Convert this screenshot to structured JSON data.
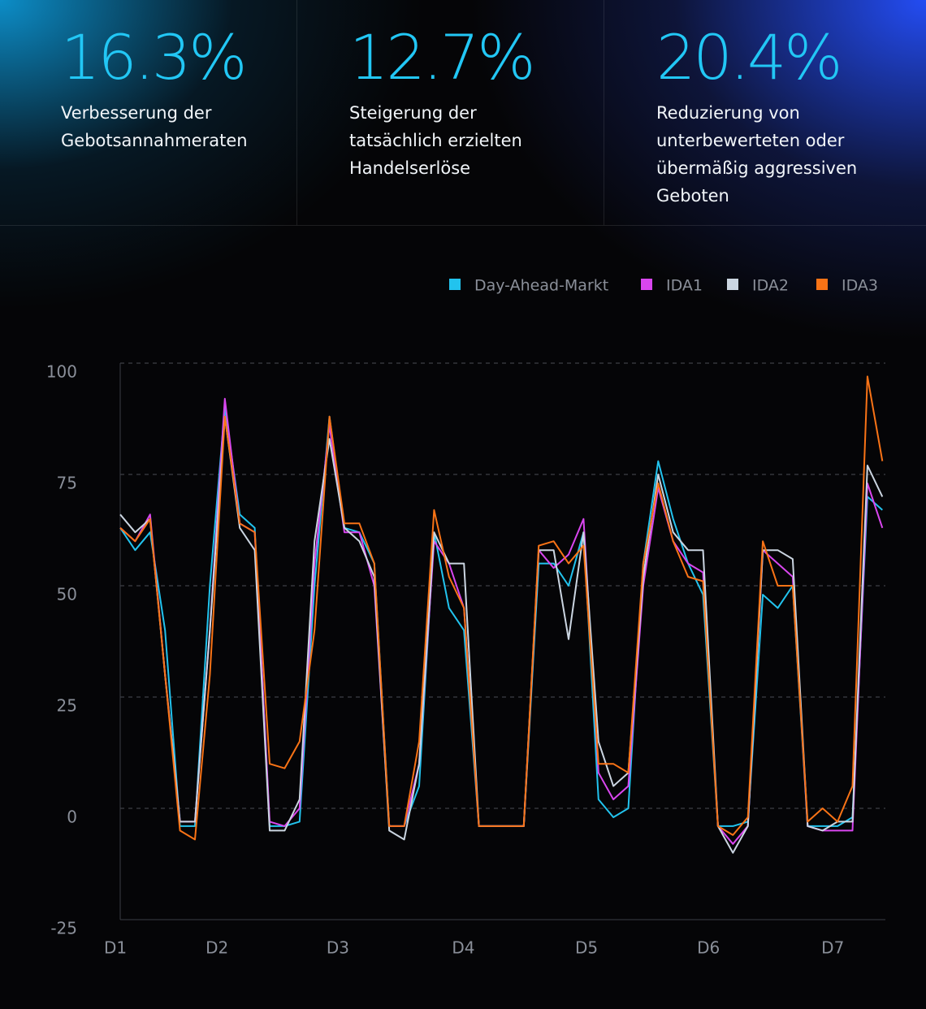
{
  "stats": [
    {
      "value": "16.3%",
      "label": "Verbesserung der Gebotsannahmeraten"
    },
    {
      "value": "12.7%",
      "label": "Steigerung der tatsächlich erzielten Handelserlöse"
    },
    {
      "value": "20.4%",
      "label": "Reduzierung von unterbewerteten oder übermäßig aggressiven Geboten"
    }
  ],
  "chart_data": {
    "type": "line",
    "x": [
      0,
      0.125,
      0.25,
      0.375,
      0.5,
      0.625,
      0.75,
      0.875,
      1,
      1.125,
      1.25,
      1.375,
      1.5,
      1.625,
      1.75,
      1.875,
      2,
      2.125,
      2.25,
      2.375,
      2.5,
      2.625,
      2.75,
      2.875,
      3,
      3.125,
      3.25,
      3.375,
      3.5,
      3.625,
      3.75,
      3.875,
      4,
      4.125,
      4.25,
      4.375,
      4.5,
      4.625,
      4.75,
      4.875,
      5,
      5.125,
      5.25,
      5.375,
      5.5,
      5.625,
      5.75,
      5.875,
      6,
      6.125,
      6.25,
      6.375
    ],
    "xlim": [
      0,
      6.4
    ],
    "xticks": [
      {
        "value": 0,
        "label": "D1"
      },
      {
        "value": 0.81,
        "label": "D2"
      },
      {
        "value": 1.82,
        "label": "D3"
      },
      {
        "value": 2.87,
        "label": "D4"
      },
      {
        "value": 3.9,
        "label": "D5"
      },
      {
        "value": 4.92,
        "label": "D6"
      },
      {
        "value": 5.96,
        "label": "D7"
      }
    ],
    "ylim": [
      -25,
      100
    ],
    "yticks": [
      -25,
      0,
      25,
      50,
      75,
      100
    ],
    "grid": true,
    "series": [
      {
        "name": "Day-Ahead-Markt",
        "color": "#22c3ee",
        "values": [
          63,
          58,
          62,
          40,
          -4,
          -4,
          50,
          90,
          66,
          63,
          -4,
          -4,
          -3,
          50,
          88,
          63,
          62,
          55,
          -4,
          -4,
          5,
          62,
          45,
          40,
          -4,
          -4,
          -4,
          -4,
          55,
          55,
          50,
          62,
          2,
          -2,
          0,
          55,
          78,
          65,
          55,
          48,
          -4,
          -4,
          -3,
          48,
          45,
          50,
          -4,
          -4,
          -4,
          -2,
          70,
          67
        ]
      },
      {
        "name": "IDA1",
        "color": "#d946ef",
        "values": [
          63,
          60,
          66,
          30,
          -3,
          -3,
          40,
          92,
          64,
          62,
          -3,
          -4,
          0,
          55,
          86,
          62,
          62,
          50,
          -4,
          -4,
          10,
          60,
          55,
          45,
          -4,
          -4,
          -4,
          -4,
          58,
          54,
          57,
          65,
          8,
          2,
          5,
          50,
          72,
          60,
          55,
          53,
          -4,
          -8,
          -4,
          58,
          55,
          52,
          -4,
          -5,
          -5,
          -5,
          73,
          63
        ]
      },
      {
        "name": "IDA2",
        "color": "#cbd5e1",
        "values": [
          66,
          62,
          65,
          30,
          -3,
          -3,
          40,
          88,
          63,
          58,
          -5,
          -5,
          2,
          60,
          83,
          63,
          60,
          52,
          -5,
          -7,
          10,
          62,
          55,
          55,
          -4,
          -4,
          -4,
          -4,
          58,
          58,
          38,
          62,
          15,
          5,
          8,
          52,
          75,
          62,
          58,
          58,
          -4,
          -10,
          -4,
          58,
          58,
          56,
          -4,
          -5,
          -3,
          -3,
          77,
          70
        ]
      },
      {
        "name": "IDA3",
        "color": "#f97316",
        "values": [
          63,
          60,
          65,
          30,
          -5,
          -7,
          30,
          88,
          64,
          62,
          10,
          9,
          15,
          40,
          88,
          64,
          64,
          55,
          -4,
          -4,
          15,
          67,
          52,
          45,
          -4,
          -4,
          -4,
          -4,
          59,
          60,
          55,
          59,
          10,
          10,
          8,
          55,
          73,
          60,
          52,
          51,
          -4,
          -6,
          -2,
          60,
          50,
          50,
          -3,
          0,
          -3,
          5,
          97,
          78
        ]
      }
    ]
  }
}
